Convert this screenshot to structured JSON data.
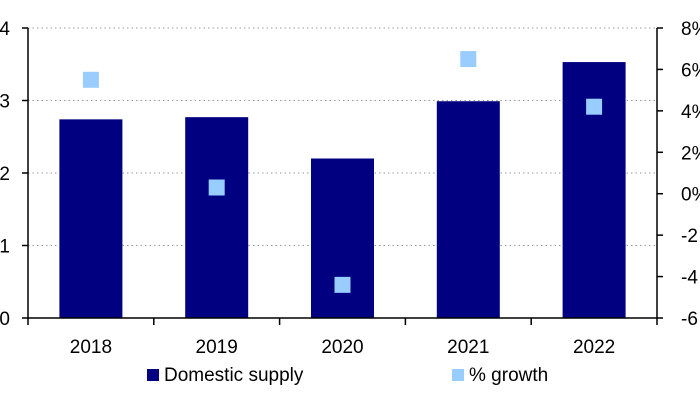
{
  "chart_data": {
    "type": "bar",
    "categories": [
      "2018",
      "2019",
      "2020",
      "2021",
      "2022"
    ],
    "series": [
      {
        "name": "Domestic supply",
        "kind": "bar",
        "axis": "left",
        "color": "#000080",
        "values": [
          2.74,
          2.77,
          2.2,
          2.99,
          3.53
        ]
      },
      {
        "name": "% growth",
        "kind": "marker",
        "axis": "right",
        "color": "#99ccff",
        "values": [
          5.5,
          0.3,
          -4.4,
          6.5,
          4.2
        ]
      }
    ],
    "y_left": {
      "min": 0,
      "max": 4,
      "ticks": [
        0,
        1,
        2,
        3,
        4
      ],
      "tick_labels": [
        "0",
        "1",
        "2",
        "3",
        "4"
      ]
    },
    "y_right": {
      "min": -6,
      "max": 8,
      "ticks": [
        -6,
        -4,
        -2,
        0,
        2,
        4,
        6,
        8
      ],
      "tick_labels": [
        "-6",
        "-4",
        "-2",
        "0%",
        "2%",
        "4%",
        "6%",
        "8%"
      ]
    },
    "grid": "horizontal-dotted",
    "legend_position": "bottom",
    "title": "",
    "xlabel": "",
    "ylabel": ""
  }
}
